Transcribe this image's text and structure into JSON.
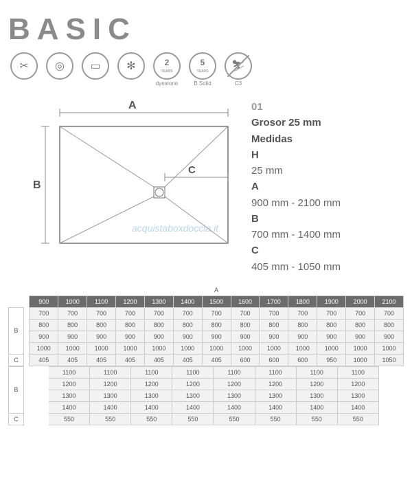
{
  "title": "BASIC",
  "icons": [
    {
      "name": "scissors",
      "glyph": "✂",
      "label": ""
    },
    {
      "name": "drain",
      "glyph": "◎",
      "label": ""
    },
    {
      "name": "ruler",
      "glyph": "▭",
      "label": ""
    },
    {
      "name": "antibac",
      "glyph": "✻",
      "label": ""
    },
    {
      "name": "warranty2",
      "glyph": "2",
      "label": "dyestone",
      "sub": "YEARS"
    },
    {
      "name": "warranty5",
      "glyph": "5",
      "label": "B Solid",
      "sub": "YEARS"
    },
    {
      "name": "antislip",
      "glyph": "⛷",
      "label": "C3",
      "slash": true
    }
  ],
  "diagram": {
    "labels": {
      "A": "A",
      "B": "B",
      "C": "C"
    }
  },
  "watermark": "acquistaboxdoccia.it",
  "specs": {
    "num": "01",
    "thickLabel": "Grosor 25 mm",
    "measLabel": "Medidas",
    "H": {
      "k": "H",
      "v": "25 mm"
    },
    "A": {
      "k": "A",
      "v": "900 mm - 2100 mm"
    },
    "B": {
      "k": "B",
      "v": "700 mm - 1400 mm"
    },
    "C": {
      "k": "C",
      "v": "405 mm - 1050 mm"
    }
  },
  "table1": {
    "headLabel": "A",
    "cols": [
      "900",
      "1000",
      "1100",
      "1200",
      "1300",
      "1400",
      "1500",
      "1600",
      "1700",
      "1800",
      "1900",
      "2000",
      "2100"
    ],
    "B": [
      [
        "700",
        "700",
        "700",
        "700",
        "700",
        "700",
        "700",
        "700",
        "700",
        "700",
        "700",
        "700",
        "700"
      ],
      [
        "800",
        "800",
        "800",
        "800",
        "800",
        "800",
        "800",
        "800",
        "800",
        "800",
        "800",
        "800",
        "800"
      ],
      [
        "900",
        "900",
        "900",
        "900",
        "900",
        "900",
        "900",
        "900",
        "900",
        "900",
        "900",
        "900",
        "900"
      ],
      [
        "1000",
        "1000",
        "1000",
        "1000",
        "1000",
        "1000",
        "1000",
        "1000",
        "1000",
        "1000",
        "1000",
        "1000",
        "1000"
      ]
    ],
    "C": [
      "405",
      "405",
      "405",
      "405",
      "405",
      "405",
      "405",
      "600",
      "600",
      "600",
      "950",
      "1000",
      "1050"
    ]
  },
  "table2": {
    "B": [
      [
        "1100",
        "1100",
        "1100",
        "1100",
        "1100",
        "1100",
        "1100",
        "1100"
      ],
      [
        "1200",
        "1200",
        "1200",
        "1200",
        "1200",
        "1200",
        "1200",
        "1200"
      ],
      [
        "1300",
        "1300",
        "1300",
        "1300",
        "1300",
        "1300",
        "1300",
        "1300"
      ],
      [
        "1400",
        "1400",
        "1400",
        "1400",
        "1400",
        "1400",
        "1400",
        "1400"
      ]
    ],
    "C": [
      "550",
      "550",
      "550",
      "550",
      "550",
      "550",
      "550",
      "550"
    ]
  }
}
